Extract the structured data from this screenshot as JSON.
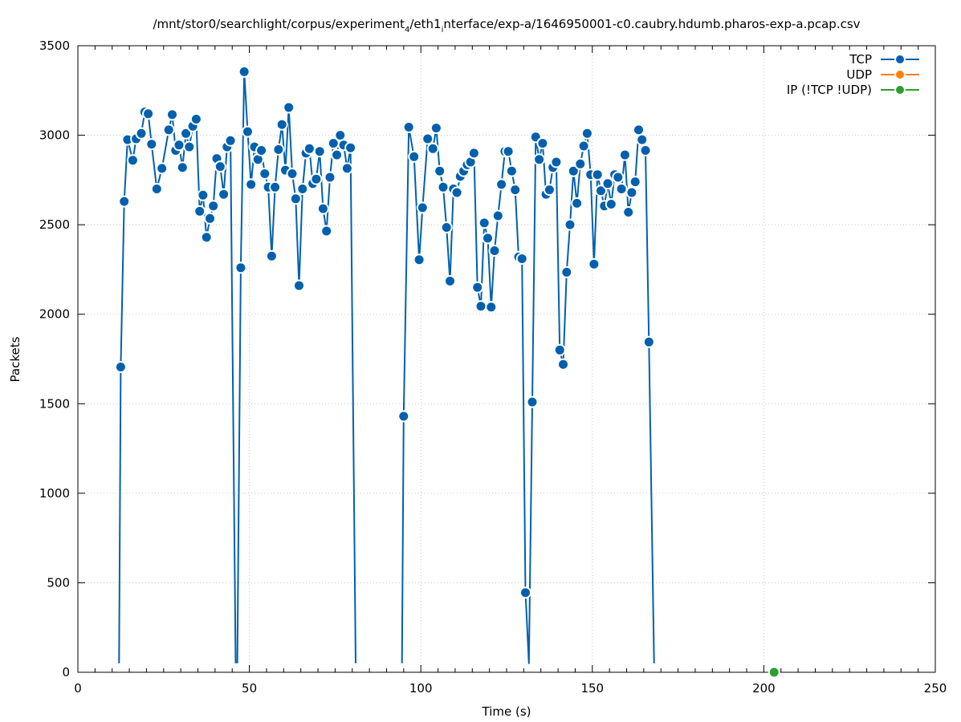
{
  "chart_data": {
    "type": "line",
    "title_parts": {
      "a": "/mnt/stor0/searchlight/corpus/experiment",
      "a_sub": "4",
      "b": "/eth1",
      "b_sub": "i",
      "c": "nterface/exp-a/1646950001-c0.caubry.hdumb.pharos-exp-a.pcap.csv"
    },
    "xlabel": "Time (s)",
    "ylabel": "Packets",
    "xlim": [
      0,
      250
    ],
    "ylim": [
      0,
      3500
    ],
    "xticks": [
      "0",
      "50",
      "100",
      "150",
      "200",
      "250"
    ],
    "yticks": [
      "0",
      "500",
      "1000",
      "1500",
      "2000",
      "2500",
      "3000",
      "3500"
    ],
    "grid": true,
    "legend_position": "top-right",
    "series": [
      {
        "name": "TCP",
        "color": "#0060ad",
        "segments": [
          [
            [
              12,
              50
            ],
            [
              12.5,
              1705
            ],
            [
              13.5,
              2630
            ],
            [
              14.5,
              2975
            ],
            [
              16,
              2860
            ],
            [
              17,
              2980
            ],
            [
              18.5,
              3010
            ],
            [
              19.5,
              3130
            ],
            [
              20.5,
              3120
            ],
            [
              21.5,
              2950
            ],
            [
              23,
              2700
            ],
            [
              24.5,
              2815
            ],
            [
              26.5,
              3030
            ],
            [
              27.5,
              3115
            ],
            [
              28.5,
              2915
            ],
            [
              29.5,
              2945
            ],
            [
              30.5,
              2820
            ],
            [
              31.5,
              3010
            ],
            [
              32.5,
              2935
            ],
            [
              33.5,
              3050
            ],
            [
              34.5,
              3090
            ],
            [
              35.5,
              2575
            ],
            [
              36.5,
              2665
            ],
            [
              37.5,
              2430
            ],
            [
              38.5,
              2535
            ],
            [
              39.5,
              2605
            ],
            [
              40.5,
              2870
            ],
            [
              41.5,
              2825
            ],
            [
              42.5,
              2670
            ],
            [
              43.5,
              2935
            ],
            [
              44.5,
              2970
            ],
            [
              46,
              50
            ]
          ],
          [
            [
              46.5,
              50
            ],
            [
              47.5,
              2260
            ],
            [
              48.5,
              3355
            ],
            [
              49.5,
              3020
            ],
            [
              50.5,
              2725
            ],
            [
              51.5,
              2935
            ],
            [
              52.5,
              2865
            ],
            [
              53.5,
              2915
            ],
            [
              54.5,
              2785
            ],
            [
              55.5,
              2710
            ],
            [
              56.5,
              2325
            ],
            [
              57.5,
              2710
            ],
            [
              58.5,
              2920
            ],
            [
              59.5,
              3060
            ],
            [
              60.5,
              2805
            ],
            [
              61.5,
              3155
            ],
            [
              62.5,
              2785
            ],
            [
              63.5,
              2645
            ],
            [
              64.5,
              2160
            ],
            [
              65.5,
              2700
            ],
            [
              66.5,
              2900
            ],
            [
              67.5,
              2925
            ],
            [
              68.5,
              2730
            ],
            [
              69.5,
              2755
            ],
            [
              70.5,
              2910
            ],
            [
              71.5,
              2590
            ],
            [
              72.5,
              2465
            ],
            [
              73.5,
              2765
            ],
            [
              74.5,
              2955
            ],
            [
              75.5,
              2890
            ],
            [
              76.5,
              3000
            ],
            [
              77.5,
              2945
            ],
            [
              78.5,
              2815
            ],
            [
              79.5,
              2930
            ],
            [
              81,
              50
            ]
          ],
          [
            [
              94.5,
              50
            ],
            [
              95,
              1430
            ],
            [
              96.5,
              3045
            ],
            [
              98,
              2880
            ],
            [
              99.5,
              2305
            ],
            [
              100.5,
              2595
            ],
            [
              102,
              2980
            ],
            [
              103.5,
              2925
            ],
            [
              104.5,
              3040
            ],
            [
              105.5,
              2800
            ],
            [
              106.5,
              2710
            ],
            [
              107.5,
              2485
            ],
            [
              108.5,
              2185
            ],
            [
              109.5,
              2700
            ],
            [
              110.5,
              2680
            ],
            [
              111.5,
              2770
            ],
            [
              112.5,
              2800
            ],
            [
              113.5,
              2835
            ],
            [
              114.5,
              2850
            ],
            [
              115.5,
              2900
            ],
            [
              116.5,
              2150
            ],
            [
              117.5,
              2045
            ],
            [
              118.5,
              2510
            ],
            [
              119.5,
              2425
            ],
            [
              120.5,
              2040
            ],
            [
              121.5,
              2355
            ],
            [
              122.5,
              2550
            ],
            [
              123.5,
              2725
            ],
            [
              124.5,
              2910
            ],
            [
              125.5,
              2910
            ],
            [
              126.5,
              2800
            ],
            [
              127.5,
              2695
            ],
            [
              128.5,
              2320
            ],
            [
              129.5,
              2310
            ],
            [
              130.5,
              445
            ],
            [
              131.5,
              50
            ],
            [
              132.5,
              1510
            ],
            [
              133.5,
              2990
            ],
            [
              134.5,
              2865
            ],
            [
              135.5,
              2955
            ],
            [
              136.5,
              2670
            ],
            [
              137.5,
              2695
            ],
            [
              138.5,
              2820
            ],
            [
              139.5,
              2850
            ],
            [
              140.5,
              1800
            ],
            [
              141.5,
              1720
            ],
            [
              142.5,
              2235
            ],
            [
              143.5,
              2500
            ],
            [
              144.5,
              2800
            ],
            [
              145.5,
              2620
            ],
            [
              146.5,
              2840
            ],
            [
              147.5,
              2940
            ],
            [
              148.5,
              3010
            ],
            [
              149.5,
              2780
            ],
            [
              150.5,
              2280
            ],
            [
              151.5,
              2780
            ],
            [
              152.5,
              2690
            ],
            [
              153.5,
              2605
            ],
            [
              154.5,
              2730
            ],
            [
              155.5,
              2615
            ],
            [
              156.5,
              2780
            ],
            [
              157.5,
              2765
            ],
            [
              158.5,
              2700
            ],
            [
              159.5,
              2890
            ],
            [
              160.5,
              2570
            ],
            [
              161.5,
              2680
            ],
            [
              162.5,
              2740
            ],
            [
              163.5,
              3030
            ],
            [
              164.5,
              2975
            ],
            [
              165.5,
              2915
            ],
            [
              166.5,
              1845
            ],
            [
              168,
              50
            ]
          ]
        ]
      },
      {
        "name": "UDP",
        "color": "#ff7f0e",
        "segments": []
      },
      {
        "name": "IP (!TCP  !UDP)",
        "color": "#2ca02c",
        "segments": [
          [
            [
              203,
              0
            ]
          ]
        ]
      }
    ]
  }
}
